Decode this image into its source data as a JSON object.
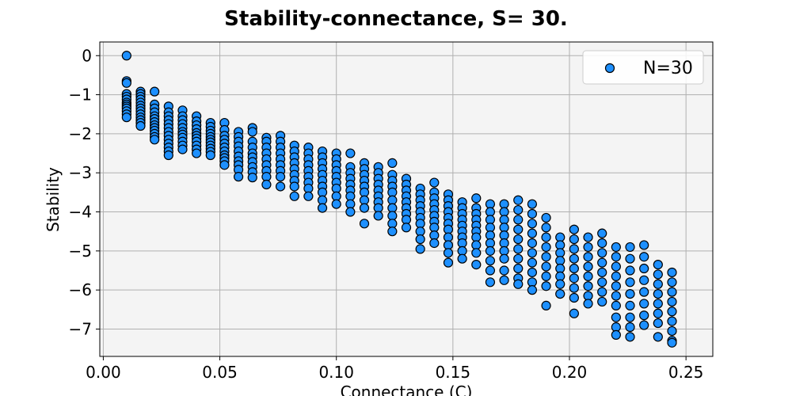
{
  "chart_data": {
    "type": "scatter",
    "title": "Stability-connectance, S= 30.",
    "xlabel": "Connectance (C)",
    "ylabel": "Stability",
    "xlim": [
      -0.0015,
      0.2615
    ],
    "ylim": [
      -7.7,
      0.35
    ],
    "xticks": [
      0.0,
      0.05,
      0.1,
      0.15,
      0.2,
      0.25
    ],
    "xtick_labels": [
      "0.00",
      "0.05",
      "0.10",
      "0.15",
      "0.20",
      "0.25"
    ],
    "yticks": [
      0,
      -1,
      -2,
      -3,
      -4,
      -5,
      -6,
      -7
    ],
    "ytick_labels": [
      "0",
      "−1",
      "−2",
      "−3",
      "−4",
      "−5",
      "−6",
      "−7"
    ],
    "grid": true,
    "legend_position": "top-right",
    "colors": {
      "marker_fill": "#1e90ff",
      "marker_edge": "#000000",
      "plot_background": "#f4f4f4",
      "grid": "#b0b0b0"
    },
    "series": [
      {
        "name": "N=30",
        "clusters": [
          {
            "x": 0.01,
            "ys": [
              0.0,
              -0.65,
              -0.7,
              -0.98,
              -1.05,
              -1.12,
              -1.2,
              -1.25,
              -1.3,
              -1.35,
              -1.42,
              -1.5,
              -1.58
            ]
          },
          {
            "x": 0.016,
            "ys": [
              -0.92,
              -0.98,
              -1.05,
              -1.12,
              -1.2,
              -1.28,
              -1.35,
              -1.42,
              -1.5,
              -1.58,
              -1.65,
              -1.72,
              -1.8
            ]
          },
          {
            "x": 0.022,
            "ys": [
              -0.92,
              -1.25,
              -1.35,
              -1.45,
              -1.55,
              -1.62,
              -1.7,
              -1.78,
              -1.85,
              -1.92,
              -2.0,
              -2.08,
              -2.15
            ]
          },
          {
            "x": 0.028,
            "ys": [
              -1.3,
              -1.45,
              -1.55,
              -1.65,
              -1.75,
              -1.85,
              -1.95,
              -2.05,
              -2.15,
              -2.25,
              -2.35,
              -2.45,
              -2.55
            ]
          },
          {
            "x": 0.034,
            "ys": [
              -1.4,
              -1.55,
              -1.65,
              -1.75,
              -1.85,
              -1.95,
              -2.02,
              -2.1,
              -2.2,
              -2.3,
              -2.4
            ]
          },
          {
            "x": 0.04,
            "ys": [
              -1.55,
              -1.68,
              -1.78,
              -1.88,
              -1.98,
              -2.05,
              -2.12,
              -2.2,
              -2.3,
              -2.4,
              -2.5
            ]
          },
          {
            "x": 0.046,
            "ys": [
              -1.72,
              -1.82,
              -1.92,
              -2.0,
              -2.08,
              -2.15,
              -2.22,
              -2.3,
              -2.38,
              -2.46,
              -2.55
            ]
          },
          {
            "x": 0.052,
            "ys": [
              -1.72,
              -1.9,
              -2.05,
              -2.15,
              -2.25,
              -2.35,
              -2.45,
              -2.55,
              -2.62,
              -2.7,
              -2.8
            ]
          },
          {
            "x": 0.058,
            "ys": [
              -1.95,
              -2.08,
              -2.2,
              -2.32,
              -2.45,
              -2.58,
              -2.7,
              -2.8,
              -2.92,
              -3.1
            ]
          },
          {
            "x": 0.064,
            "ys": [
              -1.85,
              -1.95,
              -2.2,
              -2.35,
              -2.5,
              -2.6,
              -2.72,
              -2.85,
              -2.98,
              -3.12
            ]
          },
          {
            "x": 0.07,
            "ys": [
              -2.1,
              -2.2,
              -2.35,
              -2.5,
              -2.65,
              -2.8,
              -2.95,
              -3.1,
              -3.3
            ]
          },
          {
            "x": 0.076,
            "ys": [
              -2.05,
              -2.2,
              -2.35,
              -2.5,
              -2.65,
              -2.8,
              -2.95,
              -3.1,
              -3.35
            ]
          },
          {
            "x": 0.082,
            "ys": [
              -2.3,
              -2.45,
              -2.6,
              -2.75,
              -2.9,
              -3.05,
              -3.2,
              -3.35,
              -3.6
            ]
          },
          {
            "x": 0.088,
            "ys": [
              -2.35,
              -2.5,
              -2.65,
              -2.8,
              -2.95,
              -3.1,
              -3.25,
              -3.4,
              -3.6
            ]
          },
          {
            "x": 0.094,
            "ys": [
              -2.45,
              -2.6,
              -2.75,
              -2.9,
              -3.05,
              -3.2,
              -3.35,
              -3.5,
              -3.7,
              -3.9
            ]
          },
          {
            "x": 0.1,
            "ys": [
              -2.5,
              -2.65,
              -2.8,
              -2.95,
              -3.1,
              -3.25,
              -3.4,
              -3.6,
              -3.8
            ]
          },
          {
            "x": 0.106,
            "ys": [
              -2.5,
              -2.85,
              -3.0,
              -3.15,
              -3.3,
              -3.45,
              -3.6,
              -3.8,
              -4.0
            ]
          },
          {
            "x": 0.112,
            "ys": [
              -2.75,
              -2.9,
              -3.05,
              -3.2,
              -3.35,
              -3.5,
              -3.7,
              -3.9,
              -4.3
            ]
          },
          {
            "x": 0.118,
            "ys": [
              -2.85,
              -3.0,
              -3.15,
              -3.3,
              -3.45,
              -3.6,
              -3.75,
              -3.9,
              -4.1
            ]
          },
          {
            "x": 0.124,
            "ys": [
              -2.75,
              -3.05,
              -3.2,
              -3.35,
              -3.5,
              -3.7,
              -3.9,
              -4.1,
              -4.3,
              -4.5
            ]
          },
          {
            "x": 0.13,
            "ys": [
              -3.15,
              -3.3,
              -3.45,
              -3.6,
              -3.75,
              -3.9,
              -4.05,
              -4.2,
              -4.4
            ]
          },
          {
            "x": 0.136,
            "ys": [
              -3.4,
              -3.55,
              -3.7,
              -3.85,
              -4.0,
              -4.15,
              -4.3,
              -4.5,
              -4.7,
              -4.95
            ]
          },
          {
            "x": 0.142,
            "ys": [
              -3.25,
              -3.5,
              -3.65,
              -3.8,
              -3.95,
              -4.1,
              -4.25,
              -4.4,
              -4.6,
              -4.8
            ]
          },
          {
            "x": 0.148,
            "ys": [
              -3.55,
              -3.7,
              -3.85,
              -4.0,
              -4.15,
              -4.3,
              -4.45,
              -4.65,
              -4.85,
              -5.05,
              -5.3
            ]
          },
          {
            "x": 0.154,
            "ys": [
              -3.75,
              -3.9,
              -4.05,
              -4.2,
              -4.35,
              -4.5,
              -4.65,
              -4.8,
              -5.0,
              -5.2
            ]
          },
          {
            "x": 0.16,
            "ys": [
              -3.65,
              -3.9,
              -4.05,
              -4.2,
              -4.35,
              -4.5,
              -4.65,
              -4.85,
              -5.05,
              -5.35
            ]
          },
          {
            "x": 0.166,
            "ys": [
              -3.8,
              -4.0,
              -4.2,
              -4.4,
              -4.6,
              -4.8,
              -5.0,
              -5.25,
              -5.5,
              -5.8
            ]
          },
          {
            "x": 0.172,
            "ys": [
              -3.8,
              -4.0,
              -4.2,
              -4.4,
              -4.6,
              -4.8,
              -5.0,
              -5.2,
              -5.5,
              -5.75
            ]
          },
          {
            "x": 0.178,
            "ys": [
              -3.7,
              -3.95,
              -4.2,
              -4.45,
              -4.7,
              -4.95,
              -5.2,
              -5.45,
              -5.7,
              -5.85
            ]
          },
          {
            "x": 0.184,
            "ys": [
              -3.8,
              -4.05,
              -4.3,
              -4.55,
              -4.8,
              -5.05,
              -5.3,
              -5.55,
              -5.8,
              -6.0
            ]
          },
          {
            "x": 0.19,
            "ys": [
              -4.15,
              -4.4,
              -4.65,
              -4.9,
              -5.15,
              -5.4,
              -5.65,
              -5.9,
              -6.4
            ]
          },
          {
            "x": 0.196,
            "ys": [
              -4.65,
              -4.85,
              -5.05,
              -5.25,
              -5.45,
              -5.65,
              -5.85,
              -6.1
            ]
          },
          {
            "x": 0.202,
            "ys": [
              -4.45,
              -4.7,
              -4.95,
              -5.2,
              -5.45,
              -5.7,
              -5.95,
              -6.2,
              -6.6
            ]
          },
          {
            "x": 0.208,
            "ys": [
              -4.65,
              -4.9,
              -5.15,
              -5.4,
              -5.65,
              -5.9,
              -6.15,
              -6.35
            ]
          },
          {
            "x": 0.214,
            "ys": [
              -4.55,
              -4.8,
              -5.05,
              -5.3,
              -5.55,
              -5.8,
              -6.05,
              -6.3
            ]
          },
          {
            "x": 0.22,
            "ys": [
              -4.9,
              -5.15,
              -5.4,
              -5.65,
              -5.9,
              -6.15,
              -6.4,
              -6.7,
              -6.95,
              -7.15
            ]
          },
          {
            "x": 0.226,
            "ys": [
              -4.9,
              -5.2,
              -5.5,
              -5.8,
              -6.1,
              -6.4,
              -6.7,
              -6.95,
              -7.2
            ]
          },
          {
            "x": 0.232,
            "ys": [
              -4.85,
              -5.15,
              -5.45,
              -5.75,
              -6.05,
              -6.35,
              -6.65,
              -6.9
            ]
          },
          {
            "x": 0.238,
            "ys": [
              -5.35,
              -5.6,
              -5.85,
              -6.1,
              -6.35,
              -6.6,
              -6.85,
              -7.2
            ]
          },
          {
            "x": 0.244,
            "ys": [
              -5.55,
              -5.8,
              -6.05,
              -6.3,
              -6.55,
              -6.8,
              -7.05,
              -7.3,
              -7.35
            ]
          }
        ]
      }
    ]
  }
}
